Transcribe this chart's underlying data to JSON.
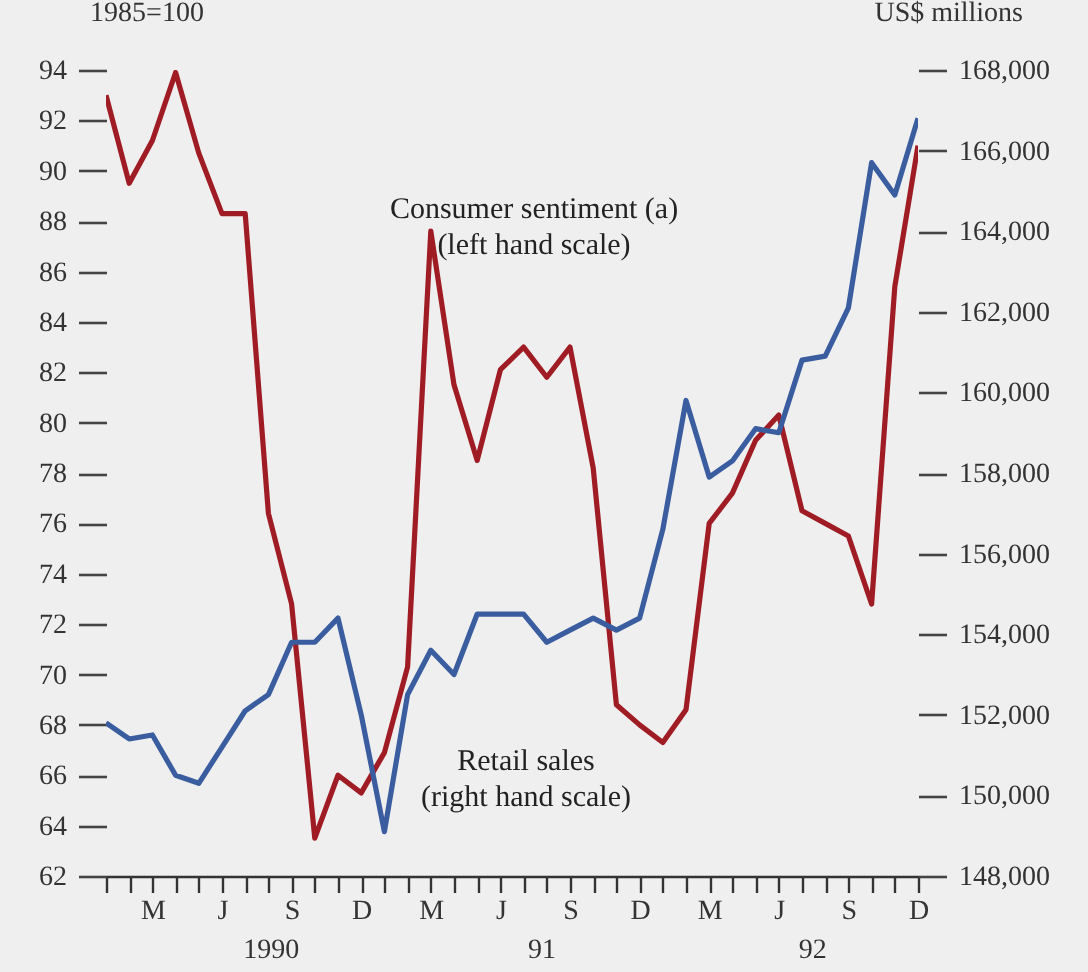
{
  "chart_data": {
    "type": "line",
    "ylabel": "1985=100",
    "y2label": "US$ millions",
    "categories": [
      null,
      null,
      "M",
      null,
      null,
      "J",
      null,
      null,
      "S",
      null,
      null,
      "D",
      null,
      null,
      "M",
      null,
      null,
      "J",
      null,
      null,
      "S",
      null,
      null,
      "D",
      null,
      null,
      "M",
      null,
      null,
      "J",
      null,
      null,
      "S",
      null,
      null,
      "D"
    ],
    "series": [
      {
        "name": "Consumer sentiment (a)\n(left hand scale)",
        "color": "#a01c24",
        "values": [
          93.0,
          89.5,
          91.2,
          93.9,
          90.7,
          88.3,
          88.3,
          76.4,
          72.8,
          63.5,
          66.0,
          65.3,
          66.9,
          70.3,
          87.6,
          81.5,
          78.5,
          82.1,
          83.0,
          81.8,
          83.0,
          78.2,
          68.8,
          68.0,
          67.3,
          68.6,
          76.0,
          77.2,
          79.3,
          80.3,
          76.5,
          76.0,
          75.5,
          72.8,
          85.4,
          91.0
        ]
      },
      {
        "name": "Retail sales\n(right hand scale)",
        "color": "#3a5da0",
        "axis": "y2",
        "values": [
          151800,
          151400,
          151500,
          150500,
          150300,
          151200,
          152100,
          152500,
          153800,
          153800,
          154400,
          152000,
          149100,
          152500,
          153600,
          153000,
          154500,
          154500,
          154500,
          153800,
          154100,
          154400,
          154100,
          154400,
          156600,
          159800,
          157900,
          158300,
          159100,
          159000,
          160800,
          160900,
          162100,
          165700,
          164900,
          166800
        ]
      }
    ],
    "ylim": [
      62,
      94
    ],
    "yticks": [
      62,
      64,
      66,
      68,
      70,
      72,
      74,
      76,
      78,
      80,
      82,
      84,
      86,
      88,
      90,
      92,
      94
    ],
    "y2lim": [
      148000,
      168000
    ],
    "y2ticks": [
      {
        "value": 148000,
        "label": "148,000"
      },
      {
        "value": 150000,
        "label": "150,000"
      },
      {
        "value": 152000,
        "label": "152,000"
      },
      {
        "value": 154000,
        "label": "154,000"
      },
      {
        "value": 156000,
        "label": "156,000"
      },
      {
        "value": 158000,
        "label": "158,000"
      },
      {
        "value": 160000,
        "label": "160,000"
      },
      {
        "value": 162000,
        "label": "162,000"
      },
      {
        "value": 164000,
        "label": "164,000"
      },
      {
        "value": 166000,
        "label": "166,000"
      },
      {
        "value": 168000,
        "label": "168,000"
      }
    ],
    "grid": false,
    "legend": false,
    "annotations": [
      "1990",
      "91",
      "92"
    ]
  }
}
